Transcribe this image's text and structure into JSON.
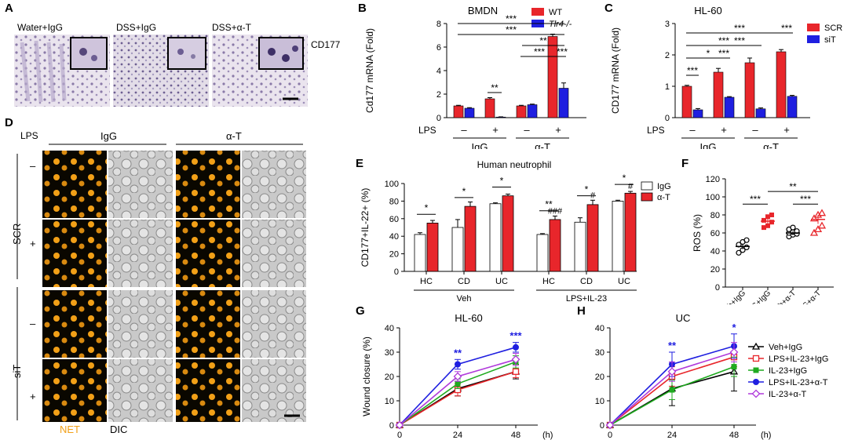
{
  "panel_labels": [
    "A",
    "B",
    "C",
    "D",
    "E",
    "F",
    "G",
    "H"
  ],
  "panel_a": {
    "groups": [
      "Water+IgG",
      "DSS+IgG",
      "DSS+α-T"
    ],
    "stain": "CD177"
  },
  "panel_d": {
    "lps_label": "LPS",
    "col_groups": [
      "IgG",
      "α-T"
    ],
    "row_groups": [
      "SCR",
      "siT"
    ],
    "lps_states": [
      "–",
      "+",
      "–",
      "+"
    ],
    "channels": [
      "NET",
      "DIC"
    ],
    "colors": {
      "net": "#f2a017",
      "dic": "#c9c9c9"
    }
  },
  "chart_data": [
    {
      "id": "B",
      "type": "bar",
      "title": "BMDN",
      "ylabel": "Cd177 mRNA (Fold)",
      "ylim": [
        0,
        8
      ],
      "yticks": [
        0,
        2,
        4,
        6,
        8
      ],
      "lps_label": "LPS",
      "lps": [
        "–",
        "+",
        "–",
        "+"
      ],
      "groups": [
        "IgG",
        "α-T"
      ],
      "series": [
        {
          "name": "WT",
          "color": "#e8262b",
          "values": [
            1.0,
            1.6,
            1.0,
            6.9
          ],
          "errors": [
            0.05,
            0.1,
            0.05,
            0.2
          ]
        },
        {
          "name": "Tlr4-/-",
          "color": "#1f1fe0",
          "values": [
            0.8,
            0.05,
            1.1,
            2.5
          ],
          "errors": [
            0.05,
            0.02,
            0.05,
            0.45
          ]
        }
      ],
      "significance": [
        "***",
        "***",
        "**",
        "***",
        "***",
        "**"
      ]
    },
    {
      "id": "C",
      "type": "bar",
      "title": "HL-60",
      "ylabel": "CD177 mRNA (Fold)",
      "ylim": [
        0,
        3
      ],
      "yticks": [
        0,
        1,
        2,
        3
      ],
      "lps_label": "LPS",
      "lps": [
        "–",
        "+",
        "–",
        "+"
      ],
      "groups": [
        "IgG",
        "α-T"
      ],
      "series": [
        {
          "name": "SCR",
          "color": "#e8262b",
          "values": [
            1.0,
            1.45,
            1.75,
            2.1
          ],
          "errors": [
            0.03,
            0.12,
            0.15,
            0.07
          ]
        },
        {
          "name": "siT",
          "color": "#1f1fe0",
          "values": [
            0.25,
            0.65,
            0.28,
            0.68
          ],
          "errors": [
            0.04,
            0.02,
            0.03,
            0.03
          ]
        }
      ],
      "significance": [
        "***",
        "***",
        "***",
        "***",
        "*",
        "***",
        "***"
      ]
    },
    {
      "id": "E",
      "type": "bar",
      "title": "Human neutrophil",
      "ylabel": "CD177+IL-22+ (%)",
      "ylim": [
        0,
        100
      ],
      "yticks": [
        0,
        20,
        40,
        60,
        80,
        100
      ],
      "categories": [
        "HC",
        "CD",
        "UC",
        "HC",
        "CD",
        "UC"
      ],
      "groups": [
        "Veh",
        "LPS+IL-23"
      ],
      "series": [
        {
          "name": "IgG",
          "color": "#ffffff",
          "values": [
            42,
            50,
            77,
            42,
            56,
            80
          ],
          "errors": [
            2,
            9,
            1,
            1,
            5,
            1
          ]
        },
        {
          "name": "α-T",
          "color": "#e8262b",
          "values": [
            55,
            74,
            86,
            59,
            76,
            89
          ],
          "errors": [
            3,
            5,
            2,
            4,
            5,
            2
          ]
        }
      ],
      "significance": [
        "*",
        "*",
        "*",
        "**",
        "*",
        "*"
      ],
      "hash_marks": [
        "###",
        "#",
        "#"
      ]
    },
    {
      "id": "F",
      "type": "scatter",
      "ylabel": "ROS (%)",
      "ylim": [
        0,
        120
      ],
      "yticks": [
        0,
        20,
        40,
        60,
        80,
        100,
        120
      ],
      "categories": [
        "Veh+IgG",
        "LPS+IgG",
        "Veh+α-T",
        "LPS+α-T"
      ],
      "points": [
        [
          38,
          41,
          44,
          47,
          50,
          52
        ],
        [
          66,
          68,
          72,
          74,
          78,
          80
        ],
        [
          56,
          58,
          59,
          60,
          61,
          62,
          64,
          66
        ],
        [
          60,
          64,
          68,
          76,
          80,
          82
        ]
      ],
      "means": [
        45,
        73,
        60,
        75
      ],
      "errors": [
        3,
        4,
        2,
        5
      ],
      "significance": [
        "***",
        "**",
        "***"
      ]
    },
    {
      "id": "G",
      "type": "line",
      "title": "HL-60",
      "ylabel": "Wound closure (%)",
      "xunit": "(h)",
      "x": [
        0,
        24,
        48
      ],
      "ylim": [
        0,
        40
      ],
      "yticks": [
        0,
        10,
        20,
        30,
        40
      ],
      "series": [
        {
          "name": "Veh+IgG",
          "color": "#000000",
          "marker": "triangle-open",
          "values": [
            0,
            15,
            22
          ],
          "errors": [
            0,
            3,
            3
          ]
        },
        {
          "name": "LPS+IL-23+IgG",
          "color": "#e8262b",
          "marker": "square-open",
          "values": [
            0,
            14.5,
            22
          ],
          "errors": [
            0,
            2.5,
            2.5
          ]
        },
        {
          "name": "IL-23+IgG",
          "color": "#1faa1f",
          "marker": "square",
          "values": [
            0,
            17,
            26
          ],
          "errors": [
            0,
            2,
            2.5
          ]
        },
        {
          "name": "LPS+IL-23+α-T",
          "color": "#1f1fe0",
          "marker": "circle",
          "values": [
            0,
            25,
            32
          ],
          "errors": [
            0,
            2,
            2
          ]
        },
        {
          "name": "IL-23+α-T",
          "color": "#b03adb",
          "marker": "diamond-open",
          "values": [
            0,
            20,
            27
          ],
          "errors": [
            0,
            2,
            2.5
          ]
        }
      ],
      "significance": [
        {
          "x": 24,
          "label": "**"
        },
        {
          "x": 48,
          "label": "***"
        }
      ]
    },
    {
      "id": "H",
      "type": "line",
      "title": "UC",
      "ylabel": "",
      "xunit": "(h)",
      "x": [
        0,
        24,
        48
      ],
      "ylim": [
        0,
        40
      ],
      "yticks": [
        0,
        10,
        20,
        30,
        40
      ],
      "series": [
        {
          "name": "Veh+IgG",
          "color": "#000000",
          "marker": "triangle-open",
          "values": [
            0,
            15,
            22
          ],
          "errors": [
            0,
            7,
            8
          ]
        },
        {
          "name": "LPS+IL-23+IgG",
          "color": "#e8262b",
          "marker": "square-open",
          "values": [
            0,
            20,
            28
          ],
          "errors": [
            0,
            4,
            4
          ]
        },
        {
          "name": "IL-23+IgG",
          "color": "#1faa1f",
          "marker": "square",
          "values": [
            0,
            14.5,
            24
          ],
          "errors": [
            0,
            4,
            4
          ]
        },
        {
          "name": "LPS+IL-23+α-T",
          "color": "#1f1fe0",
          "marker": "circle",
          "values": [
            0,
            25,
            32.5
          ],
          "errors": [
            0,
            5,
            5
          ]
        },
        {
          "name": "IL-23+α-T",
          "color": "#b03adb",
          "marker": "diamond-open",
          "values": [
            0,
            22,
            30
          ],
          "errors": [
            0,
            4,
            4
          ]
        }
      ],
      "significance": [
        {
          "x": 24,
          "label": "**"
        },
        {
          "x": 48,
          "label": "*"
        }
      ]
    }
  ]
}
